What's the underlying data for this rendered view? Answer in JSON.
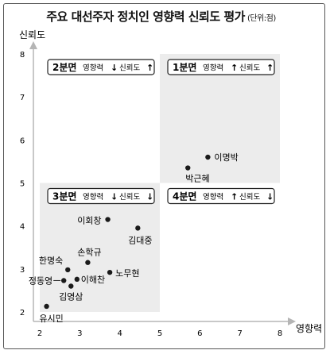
{
  "title": "주요 대선주자 정치인 영향력 신뢰도 평가",
  "unit": "(단위:점)",
  "chart_data": {
    "type": "scatter",
    "title": "주요 대선주자 정치인 영향력 신뢰도 평가",
    "xlabel": "영향력",
    "ylabel": "신뢰도",
    "xlim": [
      2,
      8
    ],
    "ylim": [
      2,
      8
    ],
    "xticks": [
      2,
      3,
      4,
      5,
      6,
      7,
      8
    ],
    "yticks": [
      2,
      3,
      4,
      5,
      6,
      7,
      8
    ],
    "points": [
      {
        "label": "이명박",
        "x": 6.2,
        "y": 5.6
      },
      {
        "label": "박근혜",
        "x": 5.7,
        "y": 5.35
      },
      {
        "label": "이회창",
        "x": 3.7,
        "y": 4.15
      },
      {
        "label": "김대중",
        "x": 4.45,
        "y": 3.95
      },
      {
        "label": "손학규",
        "x": 3.2,
        "y": 3.15
      },
      {
        "label": "한명숙",
        "x": 2.7,
        "y": 2.98
      },
      {
        "label": "노무현",
        "x": 3.75,
        "y": 2.92
      },
      {
        "label": "정동영",
        "x": 2.6,
        "y": 2.73
      },
      {
        "label": "이해찬",
        "x": 2.93,
        "y": 2.76
      },
      {
        "label": "김영삼",
        "x": 2.78,
        "y": 2.6
      },
      {
        "label": "유시민",
        "x": 2.17,
        "y": 2.13
      }
    ],
    "quadrants": [
      {
        "name": "1분면",
        "text1": "영향력",
        "arrow1": "up",
        "text2": "신뢰도",
        "arrow2": "up",
        "shaded": true
      },
      {
        "name": "2분면",
        "text1": "영향력",
        "arrow1": "down",
        "text2": "신뢰도",
        "arrow2": "up",
        "shaded": false
      },
      {
        "name": "3분면",
        "text1": "영향력",
        "arrow1": "down",
        "text2": "신뢰도",
        "arrow2": "down",
        "shaded": true
      },
      {
        "name": "4분면",
        "text1": "영향력",
        "arrow1": "up",
        "text2": "신뢰도",
        "arrow2": "down",
        "shaded": false
      }
    ],
    "colors": {
      "shade": "#ececec",
      "point": "#1a1a1a",
      "axis": "#b5b5b5"
    }
  }
}
